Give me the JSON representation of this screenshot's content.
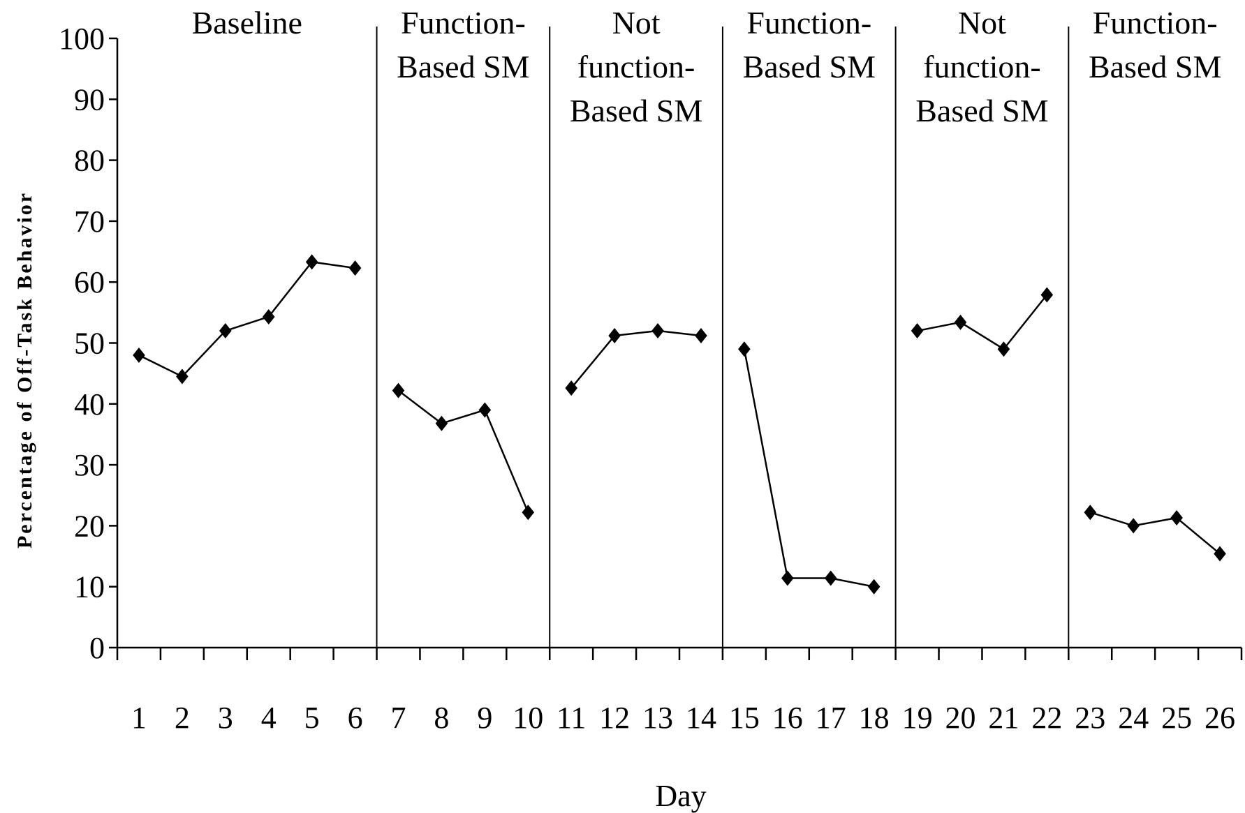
{
  "chart_data": {
    "type": "line",
    "xlabel": "Day",
    "ylabel": "Percentage of Off-Task Behavior",
    "ylim": [
      0,
      100
    ],
    "yticks": [
      0,
      10,
      20,
      30,
      40,
      50,
      60,
      70,
      80,
      90,
      100
    ],
    "x": [
      1,
      2,
      3,
      4,
      5,
      6,
      7,
      8,
      9,
      10,
      11,
      12,
      13,
      14,
      15,
      16,
      17,
      18,
      19,
      20,
      21,
      22,
      23,
      24,
      25,
      26
    ],
    "grid": false,
    "marker": "diamond",
    "line_color": "#000000",
    "phases": [
      {
        "label": [
          "Baseline"
        ],
        "days": [
          1,
          6
        ],
        "values": [
          48,
          44.5,
          52,
          54.3,
          63.3,
          62.3
        ]
      },
      {
        "label": [
          "Function-",
          "Based SM"
        ],
        "days": [
          7,
          10
        ],
        "values": [
          42.2,
          36.8,
          39,
          22.2
        ]
      },
      {
        "label": [
          "Not",
          "function-",
          "Based SM"
        ],
        "days": [
          11,
          14
        ],
        "values": [
          42.6,
          51.2,
          52,
          51.2
        ]
      },
      {
        "label": [
          "Function-",
          "Based SM"
        ],
        "days": [
          15,
          18
        ],
        "values": [
          49,
          11.4,
          11.4,
          10
        ]
      },
      {
        "label": [
          "Not",
          "function-",
          "Based SM"
        ],
        "days": [
          19,
          22
        ],
        "values": [
          52,
          53.4,
          49,
          57.9
        ]
      },
      {
        "label": [
          "Function-",
          "Based SM"
        ],
        "days": [
          23,
          26
        ],
        "values": [
          22.2,
          20,
          21.3,
          15.4
        ]
      }
    ]
  }
}
